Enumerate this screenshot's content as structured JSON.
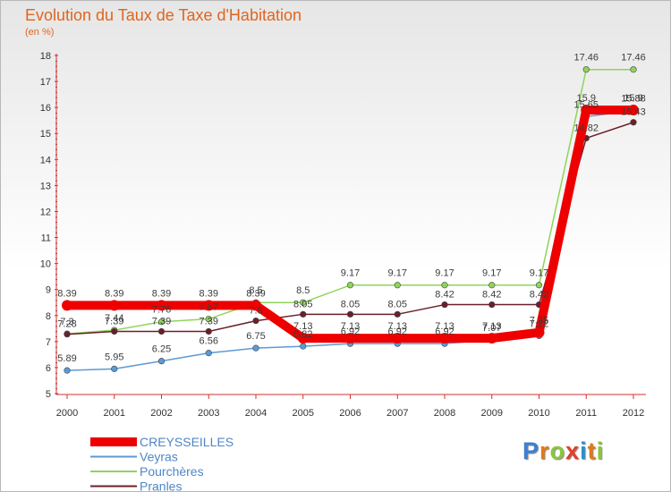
{
  "chart_data": {
    "type": "line",
    "title": "Evolution du Taux de Taxe d'Habitation",
    "subtitle": "(en %)",
    "x": [
      "2000",
      "2001",
      "2002",
      "2003",
      "2004",
      "2005",
      "2006",
      "2007",
      "2008",
      "2009",
      "2010",
      "2011",
      "2012"
    ],
    "ylim": [
      5,
      18
    ],
    "yticks": [
      5,
      6,
      7,
      8,
      9,
      10,
      11,
      12,
      13,
      14,
      15,
      16,
      17,
      18
    ],
    "grid": false,
    "legend_position": "bottom-left",
    "series": [
      {
        "name": "CREYSSEILLES",
        "color": "#ee0000",
        "values": [
          8.39,
          8.39,
          8.39,
          8.39,
          8.39,
          7.13,
          7.13,
          7.13,
          7.13,
          7.13,
          7.35,
          15.9,
          15.9
        ],
        "labels": [
          "8.39",
          "8.39",
          "8.39",
          "8.39",
          "8.39",
          "7.13",
          "7.13",
          "7.13",
          "7.13",
          "7.13",
          "7.35",
          "15.9",
          "15.9"
        ]
      },
      {
        "name": "Veyras",
        "color": "#5b9ad5",
        "values": [
          5.89,
          5.95,
          6.25,
          6.56,
          6.75,
          6.82,
          6.92,
          6.92,
          6.92,
          7.07,
          7.22,
          15.65,
          15.88
        ],
        "labels": [
          "5.89",
          "5.95",
          "6.25",
          "6.56",
          "6.75",
          "6.82",
          "6.92",
          "6.92",
          "6.92",
          "7.07",
          "7.22",
          "15.65",
          "15.88"
        ]
      },
      {
        "name": "Pourchères",
        "color": "#8fd45a",
        "values": [
          7.3,
          7.44,
          7.76,
          7.87,
          8.5,
          8.5,
          9.17,
          9.17,
          9.17,
          9.17,
          9.17,
          17.46,
          17.46
        ],
        "labels": [
          "7.3",
          "7.44",
          "7.76",
          "7.87",
          "8.5",
          "8.5",
          "9.17",
          "9.17",
          "9.17",
          "9.17",
          "9.17",
          "17.46",
          "17.46"
        ]
      },
      {
        "name": "Pranles",
        "color": "#6b1f2a",
        "values": [
          7.28,
          7.39,
          7.39,
          7.39,
          7.8,
          8.05,
          8.05,
          8.05,
          8.42,
          8.42,
          8.42,
          14.82,
          15.43
        ],
        "labels": [
          "7.28",
          "7.39",
          "7.39",
          "7.39",
          "7.8",
          "8.05",
          "8.05",
          "8.05",
          "8.42",
          "8.42",
          "8.42",
          "14.82",
          "15.43"
        ]
      }
    ]
  },
  "logo": {
    "letters": [
      {
        "ch": "P",
        "color": "#3f7fcf"
      },
      {
        "ch": "r",
        "color": "#e07a1a"
      },
      {
        "ch": "o",
        "color": "#8cc63f"
      },
      {
        "ch": "x",
        "color": "#e0402a"
      },
      {
        "ch": "i",
        "color": "#2a8fcf"
      },
      {
        "ch": "t",
        "color": "#e07a1a"
      },
      {
        "ch": "i",
        "color": "#8cc63f"
      }
    ]
  }
}
